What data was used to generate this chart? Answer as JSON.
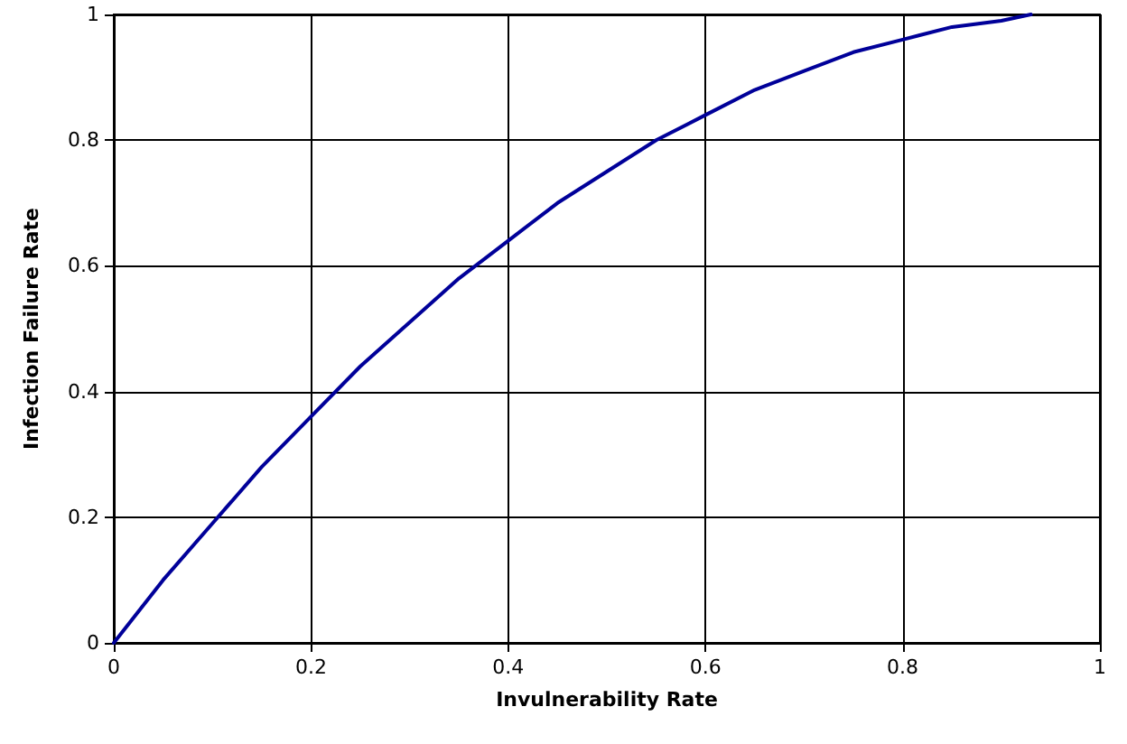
{
  "chart_data": {
    "type": "line",
    "xlabel": "Invulnerability Rate",
    "ylabel": "Infection Failure Rate",
    "x": [
      0,
      0.05,
      0.1,
      0.15,
      0.2,
      0.25,
      0.3,
      0.35,
      0.4,
      0.45,
      0.5,
      0.55,
      0.6,
      0.65,
      0.7,
      0.75,
      0.8,
      0.85,
      0.9,
      0.93
    ],
    "series": [
      {
        "color": "#000099",
        "values": [
          0,
          0.1,
          0.19,
          0.28,
          0.36,
          0.44,
          0.51,
          0.58,
          0.64,
          0.7,
          0.75,
          0.8,
          0.84,
          0.88,
          0.91,
          0.94,
          0.96,
          0.98,
          0.99,
          1.0
        ]
      }
    ],
    "xlim": [
      0,
      1
    ],
    "xticks": [
      0,
      0.2,
      0.4,
      0.6,
      0.8,
      1
    ],
    "ylim": [
      0,
      1
    ],
    "yticks": [
      0,
      0.2,
      0.4,
      0.6,
      0.8,
      1
    ],
    "grid": true,
    "marker": "none",
    "line_style": "solid"
  }
}
